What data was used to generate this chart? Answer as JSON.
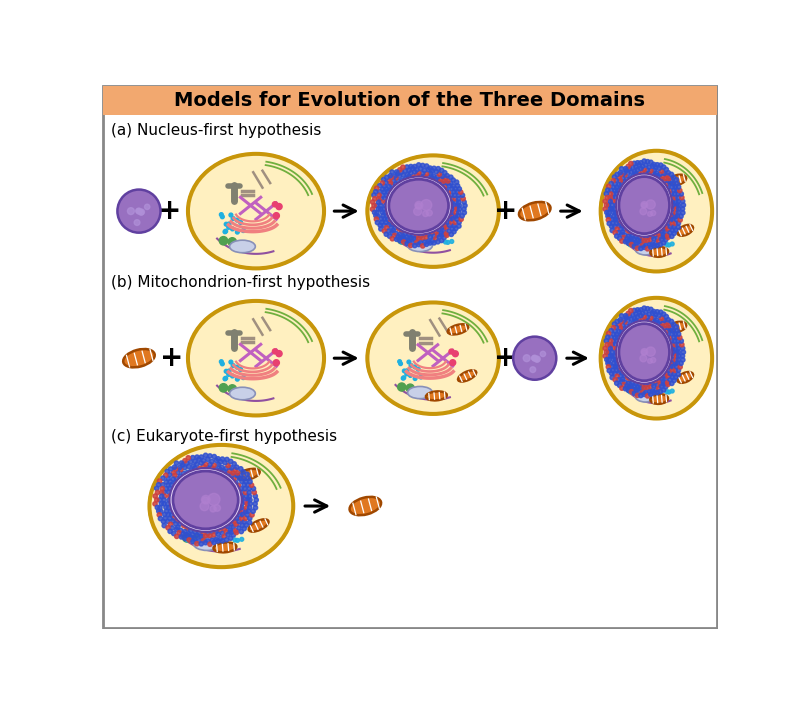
{
  "title": "Models for Evolution of the Three Domains",
  "title_bg": "#F2A86F",
  "title_color": "#000000",
  "title_fontsize": 14,
  "bg_color": "#FFFFFF",
  "border_color": "#888888",
  "section_labels": [
    "(a) Nucleus-first hypothesis",
    "(b) Mitochondrion-first hypothesis",
    "(c) Eukaryote-first hypothesis"
  ],
  "cell_fill": "#FFF0C0",
  "cell_fill2": "#FFE8A0",
  "cell_border_outer": "#C8960A",
  "cell_border_inner": "#D4A020",
  "nucleus_fill": "#9870C0",
  "nucleus_border": "#6040A0",
  "nucleus_inner": "#8060B0",
  "er_dots_color": "#3050D0",
  "er_dots_red": "#CC4040",
  "golgi_color": "#F09090",
  "golgi_border": "#D06060",
  "ribosome_color": "#20B0E0",
  "chromosome_color": "#C060C0",
  "chromosome2_color": "#B050B0",
  "vacuole_fill": "#C8D0E8",
  "vacuole_border": "#8890B8",
  "green_line_color": "#60A830",
  "purple_line_color": "#9050A0",
  "gray_bar_color": "#808070",
  "gray_slash_color": "#A09080",
  "pink_golgi_color": "#F08080",
  "pink_dots_color": "#E84070",
  "green_dots_color": "#50A050",
  "mito_fill": "#E07820",
  "mito_border": "#A04800",
  "mito_inner": "#F09840",
  "arrow_color": "#000000",
  "plus_color": "#000000",
  "prokaryote_fill": "#9870C0",
  "prokaryote_border": "#6040A0",
  "prokaryote_texture": "#B090D8"
}
